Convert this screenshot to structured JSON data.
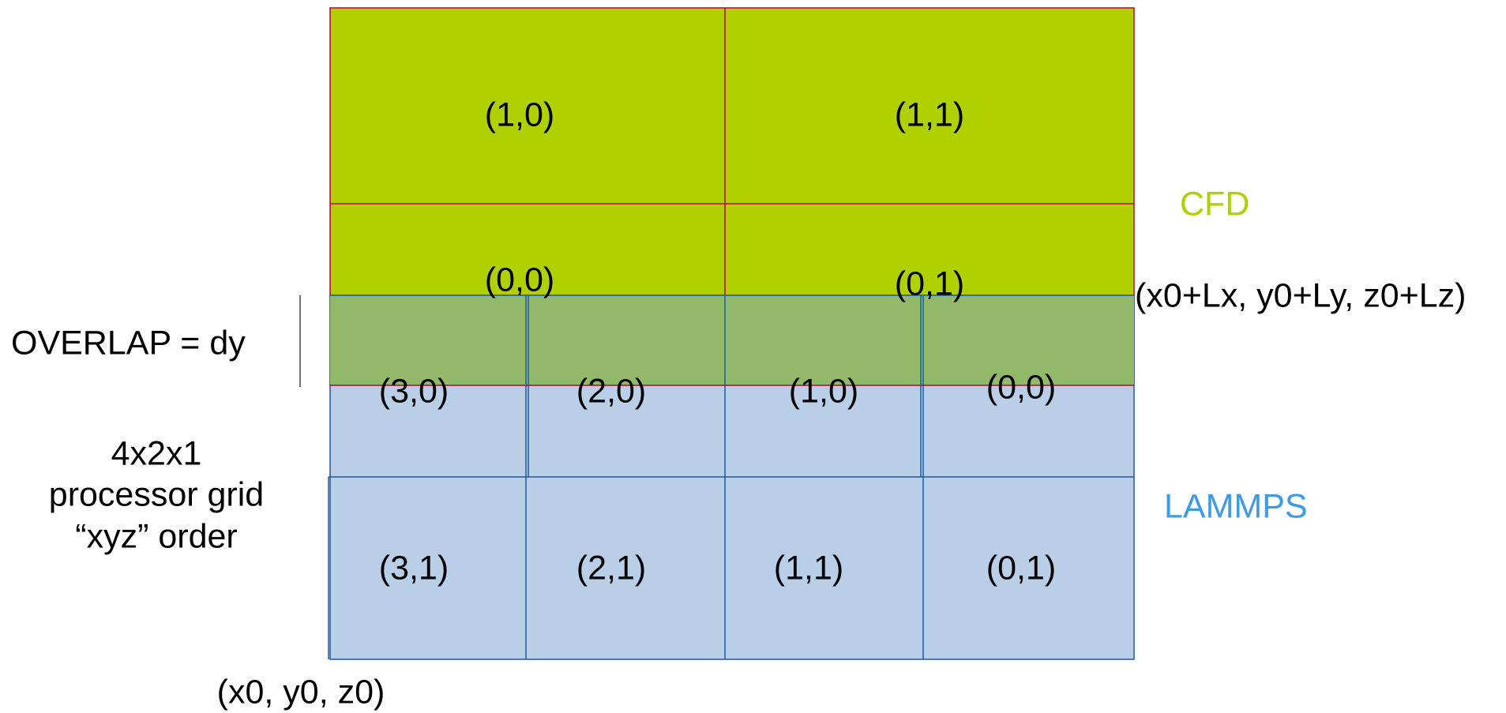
{
  "colors": {
    "cfd_fill": "#b0d000",
    "cfd_border": "#c00030",
    "lammps_fill": "#b9cfe8",
    "lammps_border": "#1f5a9a",
    "overlap_fill": "#92b86a",
    "cfd_label": "#b0d000",
    "lammps_label": "#3c9ae6",
    "text": "#000000"
  },
  "cfd": {
    "label": "CFD",
    "cells": [
      {
        "id": "cfd-1-0",
        "text": "(1,0)"
      },
      {
        "id": "cfd-1-1",
        "text": "(1,1)"
      },
      {
        "id": "cfd-0-0",
        "text": "(0,0)"
      },
      {
        "id": "cfd-0-1",
        "text": "(0,1)"
      }
    ]
  },
  "lammps": {
    "label": "LAMMPS",
    "cells": [
      {
        "id": "lmp-3-0",
        "text": "(3,0)"
      },
      {
        "id": "lmp-2-0",
        "text": "(2,0)"
      },
      {
        "id": "lmp-1-0",
        "text": "(1,0)"
      },
      {
        "id": "lmp-0-0",
        "text": "(0,0)"
      },
      {
        "id": "lmp-3-1",
        "text": "(3,1)"
      },
      {
        "id": "lmp-2-1",
        "text": "(2,1)"
      },
      {
        "id": "lmp-1-1",
        "text": "(1,1)"
      },
      {
        "id": "lmp-0-1",
        "text": "(0,1)"
      }
    ]
  },
  "overlap": {
    "label": "OVERLAP = dy"
  },
  "processor_grid": {
    "line1": "4x2x1",
    "line2": "processor grid",
    "line3": "“xyz” order"
  },
  "corners": {
    "upper": "(x0+Lx, y0+Ly, z0+Lz)",
    "lower": "(x0, y0, z0)"
  }
}
